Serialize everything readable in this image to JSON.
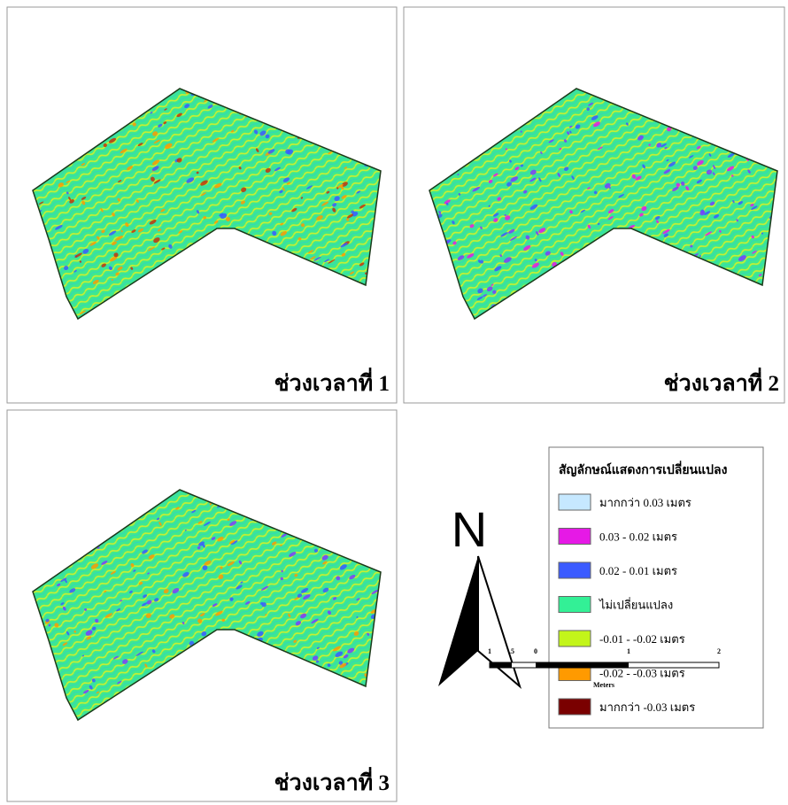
{
  "panels": [
    {
      "label": "ช่วงเวลาที่ 1"
    },
    {
      "label": "ช่วงเวลาที่ 2"
    },
    {
      "label": "ช่วงเวลาที่ 3"
    }
  ],
  "legend": {
    "title": "สัญลักษณ์แสดงการเปลี่ยนแปลง",
    "items": [
      {
        "label": "มากกว่า  0.03 เมตร",
        "color": "#c6e8ff"
      },
      {
        "label": "0.03 - 0.02 เมตร",
        "color": "#e619e6"
      },
      {
        "label": "0.02 - 0.01 เมตร",
        "color": "#3b5bff"
      },
      {
        "label": "ไม่เปลี่ยนแปลง",
        "color": "#33f096"
      },
      {
        "label": "-0.01 - -0.02 เมตร",
        "color": "#c3f51a"
      },
      {
        "label": "-0.02 - -0.03 เมตร",
        "color": "#ff9a00"
      },
      {
        "label": "มากกว่า -0.03 เมตร",
        "color": "#7a0000"
      }
    ]
  },
  "north": "N",
  "scale_bar": {
    "labels": [
      "1",
      ".5",
      "0",
      "1",
      "2"
    ],
    "unit": "Meters"
  }
}
